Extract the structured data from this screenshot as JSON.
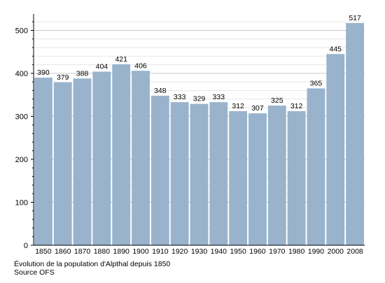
{
  "chart_data": {
    "type": "bar",
    "categories": [
      "1850",
      "1860",
      "1870",
      "1880",
      "1890",
      "1900",
      "1910",
      "1920",
      "1930",
      "1940",
      "1950",
      "1960",
      "1970",
      "1980",
      "1990",
      "2000",
      "2008"
    ],
    "values": [
      390,
      379,
      388,
      404,
      421,
      406,
      348,
      333,
      329,
      333,
      312,
      307,
      325,
      312,
      365,
      445,
      517
    ],
    "ylim": [
      0,
      530
    ],
    "yticks": [
      0,
      100,
      200,
      300,
      400,
      500
    ],
    "grid": true,
    "bar_color": "#99b3cc",
    "title": "",
    "xlabel": "",
    "ylabel": ""
  },
  "caption": {
    "line1": "Évolution de la population d'Alpthal depuis 1850",
    "line2": "Source OFS"
  }
}
